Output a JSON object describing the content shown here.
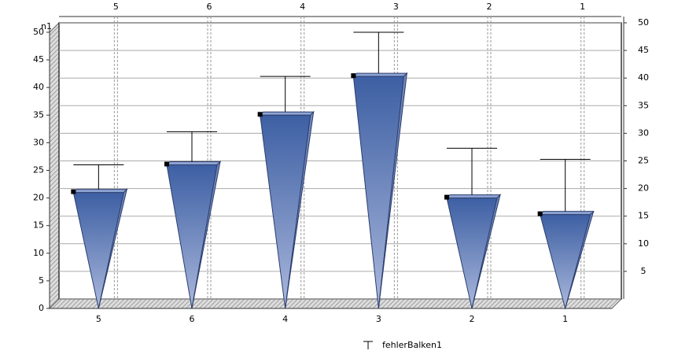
{
  "chart_data": {
    "type": "bar",
    "categories": [
      "5",
      "6",
      "4",
      "3",
      "2",
      "1"
    ],
    "x2_categories": [
      "5",
      "6",
      "4",
      "3",
      "2",
      "1"
    ],
    "ylabel": "n1",
    "series": [
      {
        "name": "fehlerBalken1",
        "color": "#4a6aa8",
        "values": [
          21,
          26,
          35,
          42,
          20,
          17
        ],
        "errors": [
          5,
          6,
          7,
          8,
          9,
          10
        ]
      }
    ],
    "ylim": [
      0,
      50
    ],
    "yticks": [
      0,
      5,
      10,
      15,
      20,
      25,
      30,
      35,
      40,
      45,
      50
    ],
    "y2lim": [
      0,
      50
    ],
    "y2ticks": [
      5,
      10,
      15,
      20,
      25,
      30,
      35,
      40,
      45,
      50
    ],
    "grid": true
  }
}
